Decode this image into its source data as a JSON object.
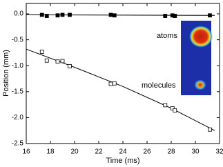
{
  "chart_data": {
    "type": "scatter",
    "xlabel": "Time (ms)",
    "ylabel": "Position (mm)",
    "xlim": [
      16,
      32
    ],
    "ylim": [
      -2.5,
      0.2
    ],
    "xticks": [
      16,
      18,
      20,
      22,
      24,
      26,
      28,
      30,
      32
    ],
    "yticks": [
      {
        "value": 0,
        "label": "0.0"
      },
      -0.5,
      {
        "value": -1,
        "label": "-1.0"
      },
      -1.5,
      {
        "value": -2,
        "label": "-2.0"
      },
      -2.5
    ],
    "series": [
      {
        "color": "#000000",
        "marker": "square-filled",
        "x": [
          17.3,
          17.7,
          18.6,
          19.0,
          19.6,
          23.0,
          23.3,
          27.5,
          28.1,
          28.3,
          31.2
        ],
        "values": [
          -0.02,
          -0.04,
          -0.03,
          -0.02,
          -0.02,
          -0.02,
          -0.03,
          -0.04,
          -0.03,
          -0.04,
          -0.03
        ]
      },
      {
        "color": "#000000",
        "marker": "square-open",
        "x": [
          17.3,
          17.7,
          18.6,
          19.0,
          19.6,
          23.0,
          23.3,
          27.5,
          28.1,
          28.3,
          31.2
        ],
        "values": [
          -0.73,
          -0.9,
          -0.92,
          -0.91,
          -1.01,
          -1.35,
          -1.34,
          -1.76,
          -1.82,
          -1.86,
          -2.23
        ]
      }
    ],
    "fits": [
      {
        "color": "#000000",
        "x": [
          16,
          31.6
        ],
        "values": [
          -0.02,
          -0.03
        ]
      },
      {
        "color": "#000000",
        "x": [
          16,
          20,
          24,
          28,
          31.6
        ],
        "values": [
          -0.68,
          -1.03,
          -1.4,
          -1.82,
          -2.25
        ]
      }
    ],
    "annotations": [
      "atoms",
      "molecules"
    ]
  }
}
